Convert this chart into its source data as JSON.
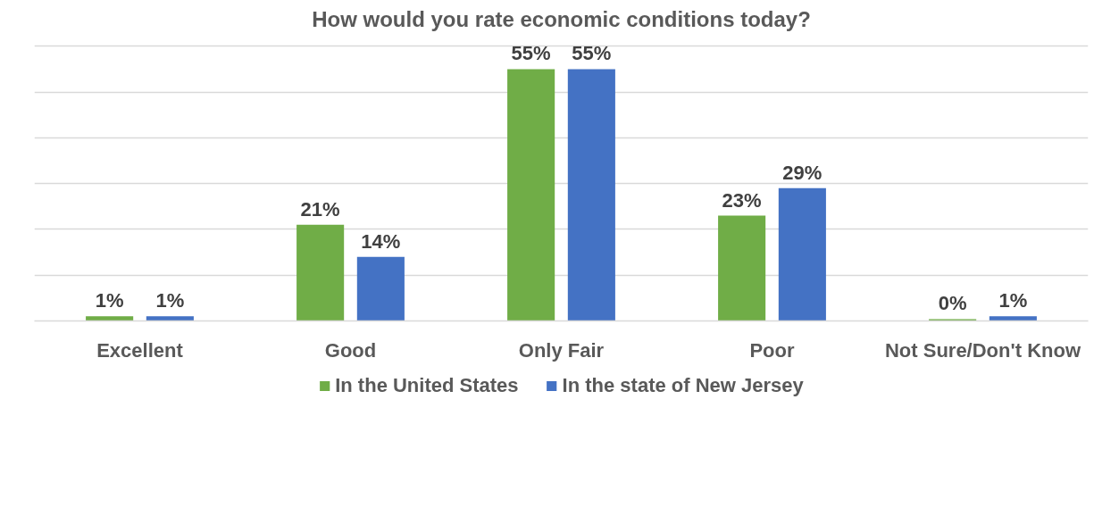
{
  "chart_data": {
    "type": "bar",
    "title": "How would you rate economic conditions today?",
    "categories": [
      "Excellent",
      "Good",
      "Only Fair",
      "Poor",
      "Not Sure/Don't Know"
    ],
    "series": [
      {
        "name": "In the United States",
        "color": "#70ad47",
        "values": [
          1,
          21,
          55,
          23,
          0.4
        ],
        "value_labels": [
          "1%",
          "21%",
          "55%",
          "23%",
          "0%"
        ]
      },
      {
        "name": "In the state of New Jersey",
        "color": "#4472c4",
        "values": [
          1,
          14,
          55,
          29,
          1
        ],
        "value_labels": [
          "1%",
          "14%",
          "55%",
          "29%",
          "1%"
        ]
      }
    ],
    "yticks": [
      {
        "value": 0,
        "label": null
      },
      {
        "value": 10,
        "label": null
      },
      {
        "value": 20,
        "label": null
      },
      {
        "value": 30,
        "label": null
      },
      {
        "value": 40,
        "label": null
      },
      {
        "value": 50,
        "label": null
      },
      {
        "value": 60,
        "label": null
      }
    ],
    "tick_labels": "x",
    "grid": "y",
    "legend": "bottom"
  }
}
